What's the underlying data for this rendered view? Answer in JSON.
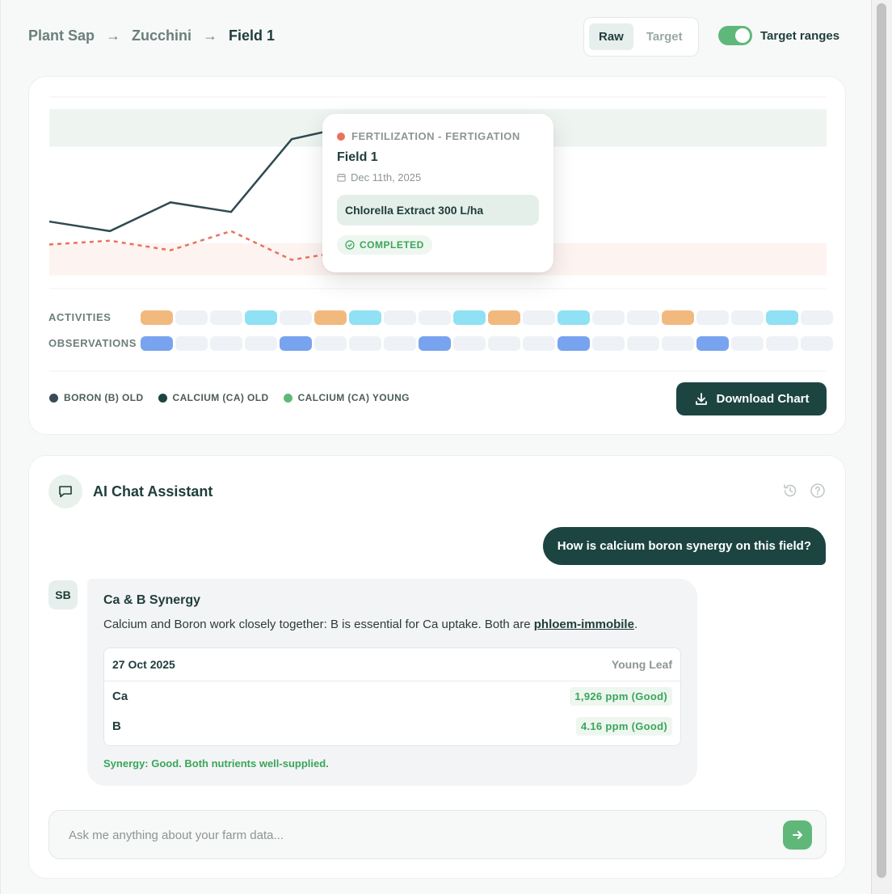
{
  "breadcrumb": {
    "items": [
      "Plant Sap",
      "Zucchini",
      "Field 1"
    ]
  },
  "mode_toggle": {
    "options": [
      "Raw",
      "Target"
    ],
    "selected": "Raw"
  },
  "target_ranges": {
    "label": "Target ranges",
    "enabled": true
  },
  "chart_tooltip": {
    "category": "FERTILIZATION - FERTIGATION",
    "title": "Field 1",
    "date": "Dec 11th, 2025",
    "product": "Chlorella Extract 300 L/ha",
    "status": "COMPLETED",
    "dot_color": "#e8735d"
  },
  "timeline": {
    "activities_label": "ACTIVITIES",
    "observations_label": "OBSERVATIONS",
    "activities": [
      "orange",
      "empty",
      "empty",
      "cyan",
      "empty",
      "orange",
      "cyan",
      "empty",
      "empty",
      "cyan",
      "orange",
      "empty",
      "cyan",
      "empty",
      "empty",
      "orange",
      "empty",
      "empty",
      "cyan",
      "empty"
    ],
    "observations": [
      "blue",
      "empty",
      "empty",
      "empty",
      "blue",
      "empty",
      "empty",
      "empty",
      "blue",
      "empty",
      "empty",
      "empty",
      "blue",
      "empty",
      "empty",
      "empty",
      "blue",
      "empty",
      "empty",
      "empty"
    ]
  },
  "legend": [
    {
      "label": "BORON (B) OLD",
      "color": "#3a4b55"
    },
    {
      "label": "CALCIUM (CA) OLD",
      "color": "#1c4542"
    },
    {
      "label": "CALCIUM (CA) YOUNG",
      "color": "#5fb87a"
    }
  ],
  "download_button": {
    "label": "Download Chart"
  },
  "chart_data": {
    "type": "line",
    "series": [
      {
        "values": [
          0.35,
          0.3,
          0.45,
          0.4,
          0.78,
          0.85
        ],
        "color": "#2f4a52",
        "style": "solid"
      },
      {
        "values": [
          0.23,
          0.25,
          0.2,
          0.3,
          0.15,
          0.2
        ],
        "color": "#e8735d",
        "style": "dashed"
      }
    ],
    "target_bands": [
      {
        "range": [
          0.65,
          1.0
        ],
        "color": "#eef5f1"
      },
      {
        "range": [
          0.0,
          0.3
        ],
        "color": "#fdf3f1"
      }
    ],
    "grid": true
  },
  "chat": {
    "title": "AI Chat Assistant",
    "user_message": "How is calcium boron synergy on this field?",
    "assistant_avatar": "SB",
    "assistant_title": "Ca & B Synergy",
    "assistant_text_before": "Calcium and Boron work closely together: B is essential for Ca uptake. Both are ",
    "assistant_link": "phloem-immobile",
    "assistant_text_after": ".",
    "table": {
      "date": "27 Oct 2025",
      "leaf": "Young Leaf",
      "rows": [
        {
          "nutrient": "Ca",
          "value": "1,926 ppm (Good)"
        },
        {
          "nutrient": "B",
          "value": "4.16 ppm (Good)"
        }
      ]
    },
    "synergy": "Synergy: Good. Both nutrients well-supplied.",
    "input_placeholder": "Ask me anything about your farm data..."
  }
}
